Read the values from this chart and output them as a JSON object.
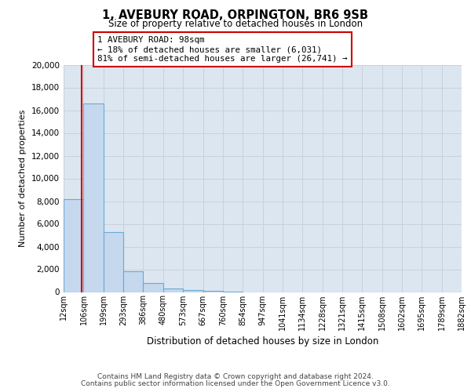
{
  "title": "1, AVEBURY ROAD, ORPINGTON, BR6 9SB",
  "subtitle": "Size of property relative to detached houses in London",
  "xlabel": "Distribution of detached houses by size in London",
  "ylabel": "Number of detached properties",
  "bin_edges": [
    12,
    106,
    199,
    293,
    386,
    480,
    573,
    667,
    760,
    854,
    947,
    1041,
    1134,
    1228,
    1321,
    1415,
    1508,
    1602,
    1695,
    1789,
    1882
  ],
  "bin_labels": [
    "12sqm",
    "106sqm",
    "199sqm",
    "293sqm",
    "386sqm",
    "480sqm",
    "573sqm",
    "667sqm",
    "760sqm",
    "854sqm",
    "947sqm",
    "1041sqm",
    "1134sqm",
    "1228sqm",
    "1321sqm",
    "1415sqm",
    "1508sqm",
    "1602sqm",
    "1695sqm",
    "1789sqm",
    "1882sqm"
  ],
  "bar_heights": [
    8200,
    16600,
    5300,
    1800,
    800,
    300,
    150,
    100,
    50,
    0,
    0,
    0,
    0,
    0,
    0,
    0,
    0,
    0,
    0,
    0
  ],
  "bar_color": "#c5d8ee",
  "bar_edge_color": "#6aaad4",
  "red_line_x": 98,
  "annotation_title": "1 AVEBURY ROAD: 98sqm",
  "annotation_line1": "← 18% of detached houses are smaller (6,031)",
  "annotation_line2": "81% of semi-detached houses are larger (26,741) →",
  "annotation_box_color": "#ffffff",
  "annotation_box_edge": "#cc0000",
  "red_line_color": "#cc0000",
  "ylim": [
    0,
    20000
  ],
  "yticks": [
    0,
    2000,
    4000,
    6000,
    8000,
    10000,
    12000,
    14000,
    16000,
    18000,
    20000
  ],
  "grid_color": "#c8d0dc",
  "bg_color": "#dce6f0",
  "footer1": "Contains HM Land Registry data © Crown copyright and database right 2024.",
  "footer2": "Contains public sector information licensed under the Open Government Licence v3.0."
}
